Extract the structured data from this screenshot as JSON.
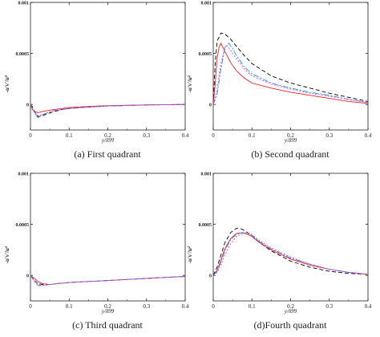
{
  "figure": {
    "y_axis_label": "-u'v'/u²",
    "x_axis_label": "y/δ99"
  },
  "chart_data": [
    {
      "type": "line",
      "caption": "(a) First quadrant",
      "xlabel": "y/δ99",
      "ylabel": "-u'v'/u²",
      "xlim": [
        0,
        0.4
      ],
      "ylim": [
        -0.00025,
        0.001
      ],
      "xticks": [
        "0",
        "0.1",
        "0.2",
        "0.3",
        "0.4"
      ],
      "yticks": [
        "0",
        "0.0005",
        "0.001"
      ],
      "grid": false,
      "series": [
        {
          "style": "dashed",
          "color": "#000000",
          "x": [
            0,
            0.005,
            0.012,
            0.02,
            0.03,
            0.045,
            0.06,
            0.08,
            0.1,
            0.15,
            0.2,
            0.25,
            0.3,
            0.35,
            0.4
          ],
          "y": [
            0,
            -2e-05,
            -8e-05,
            -0.00012,
            -0.00011,
            -9e-05,
            -7e-05,
            -5e-05,
            -4e-05,
            -2.5e-05,
            -1.5e-05,
            -1e-05,
            -5e-06,
            -2e-06,
            0
          ]
        },
        {
          "style": "solid",
          "color": "#e8231f",
          "x": [
            0,
            0.005,
            0.012,
            0.02,
            0.03,
            0.045,
            0.06,
            0.08,
            0.1,
            0.15,
            0.2,
            0.25,
            0.3,
            0.35,
            0.4
          ],
          "y": [
            0,
            -5e-05,
            -7e-05,
            -8e-05,
            -7e-05,
            -6e-05,
            -5e-05,
            -4e-05,
            -3e-05,
            -2e-05,
            -1.2e-05,
            -8e-06,
            -4e-06,
            -2e-06,
            0
          ]
        },
        {
          "style": "dashdot",
          "color": "#2a8de0",
          "x": [
            0,
            0.005,
            0.012,
            0.02,
            0.03,
            0.045,
            0.06,
            0.08,
            0.1,
            0.15,
            0.2,
            0.25,
            0.3,
            0.35,
            0.4
          ],
          "y": [
            0,
            -4e-05,
            -9e-05,
            -0.00013,
            -0.0001,
            -8e-05,
            -6e-05,
            -5e-05,
            -4e-05,
            -2.5e-05,
            -1.5e-05,
            -1e-05,
            -5e-06,
            -2e-06,
            0
          ]
        },
        {
          "style": "dotted",
          "color": "#e23de0",
          "x": [
            0,
            0.005,
            0.012,
            0.02,
            0.03,
            0.045,
            0.06,
            0.08,
            0.1,
            0.15,
            0.2,
            0.25,
            0.3,
            0.35,
            0.4
          ],
          "y": [
            0,
            -3e-05,
            -8e-05,
            -0.00011,
            -0.0001,
            -8e-05,
            -6e-05,
            -5e-05,
            -4e-05,
            -2.5e-05,
            -1.5e-05,
            -1e-05,
            -5e-06,
            -2e-06,
            0
          ]
        }
      ]
    },
    {
      "type": "line",
      "caption": "(b) Second quadrant",
      "xlabel": "y/δ99",
      "ylabel": "-u'v'/u²",
      "xlim": [
        0,
        0.4
      ],
      "ylim": [
        -0.00025,
        0.001
      ],
      "xticks": [
        "0",
        "0.1",
        "0.2",
        "0.3",
        "0.4"
      ],
      "yticks": [
        "0",
        "0.0005",
        "0.001"
      ],
      "grid": false,
      "series": [
        {
          "style": "dashed",
          "color": "#000000",
          "x": [
            0,
            0.005,
            0.01,
            0.02,
            0.03,
            0.045,
            0.06,
            0.08,
            0.1,
            0.15,
            0.2,
            0.25,
            0.3,
            0.35,
            0.4
          ],
          "y": [
            0,
            0.0004,
            0.00062,
            0.0007,
            0.00069,
            0.00064,
            0.00057,
            0.00048,
            0.0004,
            0.00028,
            0.00021,
            0.00016,
            0.00011,
            7e-05,
            3e-05
          ]
        },
        {
          "style": "solid",
          "color": "#e8231f",
          "x": [
            0,
            0.005,
            0.01,
            0.015,
            0.02,
            0.03,
            0.045,
            0.06,
            0.08,
            0.1,
            0.15,
            0.2,
            0.25,
            0.3,
            0.35,
            0.4
          ],
          "y": [
            0,
            0.0002,
            0.00045,
            0.00056,
            0.0006,
            0.00052,
            0.00041,
            0.00033,
            0.00026,
            0.00021,
            0.00016,
            0.00012,
            9e-05,
            6e-05,
            3e-05,
            1e-05
          ]
        },
        {
          "style": "dashdot",
          "color": "#2a8de0",
          "x": [
            0,
            0.01,
            0.02,
            0.03,
            0.04,
            0.05,
            0.06,
            0.08,
            0.1,
            0.15,
            0.2,
            0.25,
            0.3,
            0.35,
            0.4
          ],
          "y": [
            0,
            0.0001,
            0.00035,
            0.00055,
            0.0006,
            0.00055,
            0.00048,
            0.00037,
            0.0003,
            0.00021,
            0.00016,
            0.00012,
            9e-05,
            5e-05,
            2e-05
          ]
        },
        {
          "style": "dotted",
          "color": "#e23de0",
          "x": [
            0,
            0.01,
            0.02,
            0.03,
            0.035,
            0.045,
            0.06,
            0.08,
            0.1,
            0.15,
            0.2,
            0.25,
            0.3,
            0.35,
            0.4
          ],
          "y": [
            0,
            0.00015,
            0.0004,
            0.00056,
            0.00058,
            0.00053,
            0.00045,
            0.00035,
            0.00028,
            0.0002,
            0.00015,
            0.00011,
            8e-05,
            5e-05,
            2e-05
          ]
        }
      ]
    },
    {
      "type": "line",
      "caption": "(c) Third quadrant",
      "xlabel": "y/δ99",
      "ylabel": "-u'v'/u²",
      "xlim": [
        0,
        0.4
      ],
      "ylim": [
        -0.00025,
        0.001
      ],
      "xticks": [
        "0",
        "0.1",
        "0.2",
        "0.3",
        "0.4"
      ],
      "yticks": [
        "0",
        "0.0005",
        "0.001"
      ],
      "grid": false,
      "series": [
        {
          "style": "dashed",
          "color": "#000000",
          "x": [
            0,
            0.005,
            0.01,
            0.02,
            0.03,
            0.05,
            0.07,
            0.1,
            0.15,
            0.2,
            0.25,
            0.3,
            0.35,
            0.4
          ],
          "y": [
            0,
            -2e-05,
            -5e-05,
            -8e-05,
            -9e-05,
            -9e-05,
            -8e-05,
            -7e-05,
            -6e-05,
            -5e-05,
            -4e-05,
            -3e-05,
            -2e-05,
            -1e-05
          ]
        },
        {
          "style": "solid",
          "color": "#e8231f",
          "x": [
            0,
            0.01,
            0.02,
            0.03,
            0.05,
            0.07,
            0.1,
            0.15,
            0.2,
            0.25,
            0.3,
            0.35,
            0.4
          ],
          "y": [
            0,
            -3e-05,
            -6e-05,
            -8e-05,
            -9e-05,
            -8e-05,
            -7e-05,
            -6e-05,
            -5e-05,
            -4e-05,
            -3e-05,
            -2e-05,
            -1e-05
          ]
        },
        {
          "style": "dashdot",
          "color": "#2a8de0",
          "x": [
            0,
            0.005,
            0.01,
            0.02,
            0.03,
            0.05,
            0.07,
            0.1,
            0.15,
            0.2,
            0.25,
            0.3,
            0.35,
            0.4
          ],
          "y": [
            0,
            -3e-05,
            -6e-05,
            -0.0001,
            -0.0001,
            -9e-05,
            -8e-05,
            -7e-05,
            -6e-05,
            -5e-05,
            -4e-05,
            -3e-05,
            -2e-05,
            -1e-05
          ]
        },
        {
          "style": "dotted",
          "color": "#e23de0",
          "x": [
            0,
            0.005,
            0.01,
            0.02,
            0.03,
            0.05,
            0.07,
            0.1,
            0.15,
            0.2,
            0.25,
            0.3,
            0.35,
            0.4
          ],
          "y": [
            0,
            -2e-05,
            -5e-05,
            -9e-05,
            -0.0001,
            -9e-05,
            -8e-05,
            -7e-05,
            -6e-05,
            -5e-05,
            -4e-05,
            -3e-05,
            -2e-05,
            -1e-05
          ]
        }
      ]
    },
    {
      "type": "line",
      "caption": "(d)Fourth quadrant",
      "xlabel": "y/δ99",
      "ylabel": "-u'v'/u²",
      "xlim": [
        0,
        0.4
      ],
      "ylim": [
        -0.00025,
        0.001
      ],
      "xticks": [
        "0",
        "0.1",
        "0.2",
        "0.3",
        "0.4"
      ],
      "yticks": [
        "0",
        "0.0005",
        "0.001"
      ],
      "grid": false,
      "series": [
        {
          "style": "dashed",
          "color": "#000000",
          "x": [
            0,
            0.01,
            0.02,
            0.03,
            0.045,
            0.06,
            0.07,
            0.08,
            0.1,
            0.12,
            0.15,
            0.2,
            0.25,
            0.3,
            0.35,
            0.4
          ],
          "y": [
            0,
            8e-05,
            0.0002,
            0.00032,
            0.00042,
            0.00046,
            0.00046,
            0.00044,
            0.00039,
            0.00032,
            0.00024,
            0.00014,
            8e-05,
            4e-05,
            2e-05,
            1e-05
          ]
        },
        {
          "style": "solid",
          "color": "#e8231f",
          "x": [
            0,
            0.01,
            0.02,
            0.03,
            0.045,
            0.06,
            0.075,
            0.09,
            0.1,
            0.12,
            0.15,
            0.2,
            0.25,
            0.3,
            0.35,
            0.4
          ],
          "y": [
            0,
            5e-05,
            0.00015,
            0.00026,
            0.00036,
            0.00041,
            0.00042,
            0.0004,
            0.00038,
            0.00032,
            0.00025,
            0.00016,
            0.0001,
            6e-05,
            3e-05,
            1e-05
          ]
        },
        {
          "style": "dashdot",
          "color": "#2a8de0",
          "x": [
            0,
            0.01,
            0.02,
            0.03,
            0.045,
            0.06,
            0.075,
            0.09,
            0.1,
            0.12,
            0.15,
            0.2,
            0.25,
            0.3,
            0.35,
            0.4
          ],
          "y": [
            0,
            4e-05,
            0.00013,
            0.00024,
            0.00035,
            0.0004,
            0.00042,
            0.00041,
            0.00039,
            0.00033,
            0.00026,
            0.00017,
            0.00011,
            6e-05,
            3e-05,
            1e-05
          ]
        },
        {
          "style": "dotted",
          "color": "#e23de0",
          "x": [
            0,
            0.01,
            0.02,
            0.03,
            0.045,
            0.06,
            0.075,
            0.09,
            0.1,
            0.12,
            0.15,
            0.2,
            0.25,
            0.3,
            0.35,
            0.4
          ],
          "y": [
            0,
            3e-05,
            0.0001,
            0.0002,
            0.00031,
            0.00038,
            0.00041,
            0.00041,
            0.0004,
            0.00034,
            0.00027,
            0.00018,
            0.00011,
            6e-05,
            3e-05,
            1e-05
          ]
        }
      ]
    }
  ]
}
